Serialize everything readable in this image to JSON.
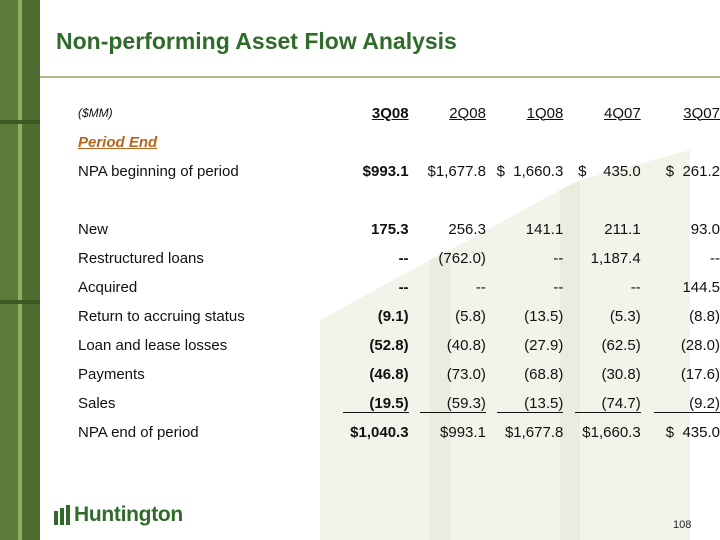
{
  "slide": {
    "title": "Non-performing Asset Flow Analysis",
    "page_number": "108",
    "logo_text": "Huntington"
  },
  "colors": {
    "title_green": "#2f6b2a",
    "accent_orange": "#b8651f",
    "bar_green": "#5c7a3a"
  },
  "table": {
    "units_label": "($MM)",
    "columns": [
      "3Q08",
      "2Q08",
      "1Q08",
      "4Q07",
      "3Q07"
    ],
    "section_label": "Period End",
    "beginning": {
      "label": "NPA beginning of period",
      "values": [
        "$993.1",
        "$1,677.8",
        "$  1,660.3",
        "$    435.0",
        "$  261.2"
      ]
    },
    "rows": [
      {
        "label": "New",
        "values": [
          "175.3",
          "256.3",
          "141.1",
          "211.1",
          "93.0"
        ]
      },
      {
        "label": "Restructured loans",
        "values": [
          "--",
          "(762.0)",
          "--",
          "1,187.4",
          "--"
        ]
      },
      {
        "label": "Acquired",
        "values": [
          "--",
          "--",
          "--",
          "--",
          "144.5"
        ]
      },
      {
        "label": "Return to accruing status",
        "values": [
          "(9.1)",
          "(5.8)",
          "(13.5)",
          "(5.3)",
          "(8.8)"
        ]
      },
      {
        "label": "Loan and lease losses",
        "values": [
          "(52.8)",
          "(40.8)",
          "(27.9)",
          "(62.5)",
          "(28.0)"
        ]
      },
      {
        "label": "Payments",
        "values": [
          "(46.8)",
          "(73.0)",
          "(68.8)",
          "(30.8)",
          "(17.6)"
        ]
      },
      {
        "label": "Sales",
        "values": [
          "(19.5)",
          "(59.3)",
          "(13.5)",
          "(74.7)",
          "(9.2)"
        ]
      }
    ],
    "ending": {
      "label": "NPA end of period",
      "values": [
        "$1,040.3",
        "$993.1",
        "$1,677.8",
        "$1,660.3",
        "$  435.0"
      ]
    }
  }
}
